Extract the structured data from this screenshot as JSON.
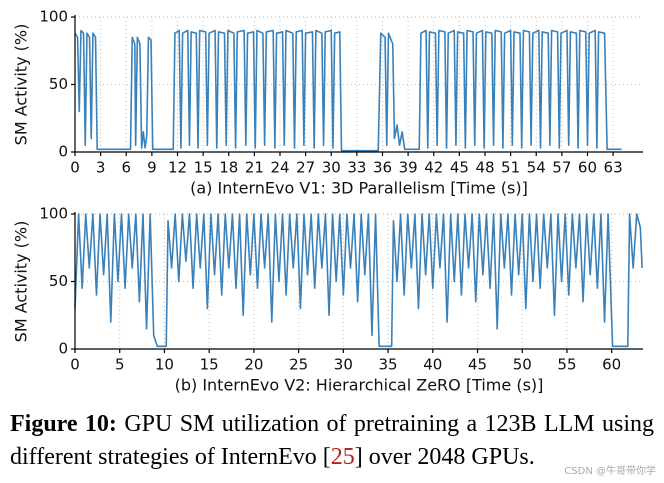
{
  "chart_data": [
    {
      "type": "line",
      "y_label": "SM Activity (%)",
      "x_label": "(a) InternEvo V1: 3D Parallelism [Time (s)]",
      "color": "#3a81ba",
      "grid": true,
      "xlim": [
        0,
        66.5
      ],
      "xticks": [
        0,
        3,
        6,
        9,
        12,
        15,
        18,
        21,
        24,
        27,
        30,
        33,
        36,
        39,
        42,
        45,
        48,
        51,
        54,
        57,
        60,
        63
      ],
      "ylim": [
        0,
        100
      ],
      "yticks": [
        0,
        50,
        100
      ],
      "x": [
        0,
        0.3,
        0.5,
        0.7,
        1.0,
        1.2,
        1.4,
        1.7,
        1.9,
        2.1,
        2.4,
        2.6,
        6.5,
        6.7,
        7,
        7.1,
        7.3,
        7.6,
        7.8,
        8,
        8.2,
        8.4,
        8.6,
        8.9,
        9.1,
        11.5,
        11.7,
        12.2,
        12.4,
        12.6,
        13.2,
        13.4,
        13.6,
        14.2,
        14.4,
        14.6,
        15.3,
        15.5,
        15.7,
        16.4,
        16.6,
        16.8,
        17.5,
        17.7,
        17.9,
        18.6,
        18.8,
        19,
        19.8,
        20,
        20.2,
        20.9,
        21.1,
        21.3,
        22,
        22.2,
        22.4,
        23.2,
        23.4,
        23.6,
        24.3,
        24.5,
        24.7,
        25.5,
        25.7,
        25.9,
        26.6,
        26.8,
        27,
        27.8,
        28,
        28.2,
        28.9,
        29.1,
        29.3,
        30,
        30.2,
        30.4,
        31,
        31.2,
        35.5,
        35.8,
        36.3,
        36.5,
        36.7,
        37.2,
        37.4,
        37.7,
        38,
        38.3,
        38.6,
        40.3,
        40.5,
        41.1,
        41.3,
        41.5,
        42.2,
        42.4,
        42.6,
        43.3,
        43.5,
        43.7,
        44.4,
        44.6,
        44.8,
        45.5,
        45.7,
        45.9,
        46.6,
        46.8,
        47,
        47.7,
        47.9,
        48.1,
        48.8,
        49,
        49.2,
        49.9,
        50.1,
        50.3,
        51,
        51.2,
        51.4,
        52.1,
        52.3,
        52.5,
        53.2,
        53.4,
        53.6,
        54.3,
        54.5,
        54.7,
        55.4,
        55.6,
        55.8,
        56.5,
        56.7,
        56.9,
        57.6,
        57.8,
        58,
        58.7,
        58.9,
        59.1,
        59.8,
        60,
        60.2,
        60.9,
        61.1,
        61.3,
        62,
        62.3,
        64
      ],
      "values": [
        88,
        85,
        30,
        90,
        88,
        5,
        88,
        85,
        10,
        88,
        85,
        2,
        2,
        85,
        80,
        5,
        85,
        80,
        3,
        15,
        3,
        12,
        85,
        83,
        2,
        2,
        88,
        90,
        3,
        88,
        90,
        5,
        89,
        88,
        3,
        90,
        89,
        5,
        88,
        90,
        3,
        89,
        88,
        5,
        90,
        88,
        3,
        89,
        90,
        5,
        88,
        89,
        3,
        90,
        88,
        5,
        89,
        90,
        3,
        88,
        89,
        5,
        90,
        88,
        3,
        89,
        90,
        5,
        88,
        89,
        3,
        90,
        88,
        5,
        89,
        90,
        3,
        88,
        89,
        1,
        1,
        88,
        85,
        5,
        88,
        80,
        10,
        20,
        5,
        15,
        2,
        2,
        88,
        90,
        3,
        89,
        88,
        5,
        90,
        89,
        3,
        88,
        90,
        5,
        89,
        88,
        3,
        90,
        89,
        5,
        88,
        90,
        3,
        89,
        88,
        5,
        90,
        89,
        3,
        88,
        90,
        5,
        89,
        88,
        3,
        90,
        89,
        5,
        88,
        90,
        3,
        89,
        88,
        5,
        90,
        89,
        3,
        88,
        90,
        5,
        89,
        88,
        3,
        90,
        89,
        5,
        88,
        90,
        3,
        89,
        88,
        2,
        2
      ]
    },
    {
      "type": "line",
      "y_label": "SM Activity (%)",
      "x_label": "(b) InternEvo V2: Hierarchical ZeRO [Time (s)]",
      "color": "#3a81ba",
      "grid": true,
      "xlim": [
        0,
        63.5
      ],
      "xticks": [
        0,
        5,
        10,
        15,
        20,
        25,
        30,
        35,
        40,
        45,
        50,
        55,
        60
      ],
      "ylim": [
        0,
        100
      ],
      "yticks": [
        0,
        50,
        100
      ],
      "x": [
        0,
        0.4,
        0.8,
        1.2,
        1.6,
        2,
        2.4,
        2.8,
        3.2,
        3.6,
        4,
        4.4,
        4.8,
        5.2,
        5.6,
        6,
        6.4,
        6.8,
        7.2,
        7.6,
        8,
        8.4,
        8.8,
        9.2,
        10.2,
        10.4,
        10.8,
        11.2,
        11.6,
        12,
        12.4,
        12.8,
        13.2,
        13.6,
        14,
        14.4,
        14.8,
        15.2,
        15.6,
        16,
        16.4,
        16.8,
        17.2,
        17.6,
        18,
        18.4,
        18.8,
        19.2,
        19.6,
        20,
        20.4,
        20.8,
        21.2,
        21.6,
        22,
        22.4,
        22.8,
        23.2,
        23.6,
        24,
        24.4,
        24.8,
        25.2,
        25.6,
        26,
        26.4,
        26.8,
        27.2,
        27.6,
        28,
        28.4,
        28.8,
        29.2,
        29.6,
        30,
        30.4,
        30.8,
        31.2,
        31.6,
        32,
        32.4,
        32.8,
        33.2,
        33.6,
        34,
        35.4,
        35.6,
        36,
        36.4,
        36.8,
        37.2,
        37.6,
        38,
        38.4,
        38.8,
        39.2,
        39.6,
        40,
        40.4,
        40.8,
        41.2,
        41.6,
        42,
        42.4,
        42.8,
        43.2,
        43.6,
        44,
        44.4,
        44.8,
        45.2,
        45.6,
        46,
        46.4,
        46.8,
        47.2,
        47.6,
        48,
        48.4,
        48.8,
        49.2,
        49.6,
        50,
        50.4,
        50.8,
        51.2,
        51.6,
        52,
        52.4,
        52.8,
        53.2,
        53.6,
        54,
        54.4,
        54.8,
        55.2,
        55.6,
        56,
        56.4,
        56.8,
        57.2,
        57.6,
        58,
        58.4,
        58.8,
        59.2,
        59.6,
        60.1,
        61.8,
        62,
        62.4,
        62.8,
        63.2,
        63.4
      ],
      "values": [
        30,
        100,
        45,
        100,
        60,
        100,
        40,
        100,
        55,
        100,
        20,
        100,
        50,
        100,
        45,
        100,
        60,
        100,
        35,
        100,
        15,
        100,
        10,
        2,
        2,
        95,
        60,
        100,
        50,
        100,
        65,
        100,
        45,
        100,
        60,
        100,
        30,
        100,
        55,
        100,
        40,
        100,
        60,
        100,
        45,
        100,
        25,
        100,
        55,
        100,
        45,
        100,
        60,
        100,
        20,
        100,
        50,
        100,
        40,
        100,
        60,
        100,
        30,
        100,
        55,
        100,
        45,
        100,
        60,
        100,
        25,
        100,
        50,
        100,
        40,
        100,
        60,
        100,
        35,
        100,
        55,
        100,
        10,
        100,
        2,
        2,
        95,
        50,
        100,
        40,
        100,
        60,
        100,
        30,
        100,
        55,
        100,
        45,
        100,
        60,
        100,
        20,
        100,
        50,
        100,
        40,
        100,
        60,
        100,
        35,
        100,
        55,
        100,
        45,
        100,
        15,
        100,
        60,
        100,
        40,
        100,
        55,
        100,
        30,
        100,
        50,
        100,
        45,
        100,
        60,
        100,
        25,
        100,
        50,
        100,
        40,
        100,
        60,
        100,
        35,
        100,
        55,
        100,
        45,
        100,
        20,
        100,
        2,
        2,
        100,
        60,
        100,
        90,
        60
      ]
    }
  ],
  "caption": {
    "label": "Figure 10:",
    "text_before": "GPU SM utilization of pretraining a 123B LLM using different strategies of InternEvo [",
    "ref": "25",
    "text_after": "] over 2048 GPUs."
  },
  "watermark": "CSDN @牛哥带你学"
}
